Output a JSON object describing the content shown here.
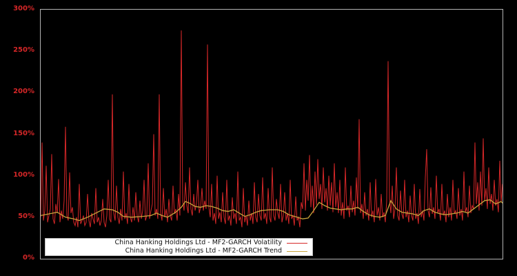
{
  "chart_data": {
    "type": "line",
    "title": "",
    "xlabel": "",
    "ylabel": "",
    "grid": false,
    "background_color": "#000000",
    "plot_border_color": "#b5b5b5",
    "axis_label_color": "#d62728",
    "x_axis": {
      "tick_labels_visible": false
    },
    "ylim": [
      0,
      300
    ],
    "y_unit": "%",
    "y_ticks": [
      {
        "value": 0,
        "label": "0%"
      },
      {
        "value": 50,
        "label": "50%"
      },
      {
        "value": 100,
        "label": "100%"
      },
      {
        "value": 150,
        "label": "150%"
      },
      {
        "value": 200,
        "label": "200%"
      },
      {
        "value": 250,
        "label": "250%"
      },
      {
        "value": 300,
        "label": "300%"
      }
    ],
    "legend": {
      "position": "bottom-left-inside",
      "background": "#ffffff",
      "entries": [
        {
          "label": "China Hanking Holdings Ltd - MF2-GARCH Volatility",
          "color": "#d62728"
        },
        {
          "label": "China Hanking Holdings Ltd - MF2-GARCH Trend",
          "color": "#c9a43c"
        }
      ]
    },
    "series": [
      {
        "name": "China Hanking Holdings Ltd - MF2-GARCH Volatility",
        "type": "line",
        "color": "#d62728",
        "unit": "%",
        "values": [
          50,
          140,
          46,
          58,
          112,
          44,
          52,
          60,
          126,
          48,
          42,
          66,
          55,
          96,
          44,
          58,
          48,
          70,
          159,
          52,
          46,
          104,
          55,
          62,
          44,
          40,
          50,
          38,
          90,
          42,
          46,
          52,
          40,
          44,
          78,
          46,
          38,
          55,
          48,
          42,
          85,
          44,
          50,
          40,
          46,
          72,
          44,
          38,
          52,
          95,
          48,
          44,
          198,
          55,
          46,
          88,
          50,
          42,
          60,
          46,
          105,
          48,
          55,
          42,
          90,
          50,
          44,
          62,
          46,
          80,
          52,
          44,
          70,
          48,
          58,
          95,
          46,
          52,
          115,
          48,
          58,
          66,
          150,
          52,
          60,
          48,
          198,
          55,
          46,
          85,
          50,
          60,
          44,
          72,
          52,
          46,
          88,
          54,
          60,
          46,
          78,
          52,
          275,
          70,
          58,
          92,
          64,
          55,
          110,
          60,
          52,
          78,
          58,
          66,
          95,
          55,
          62,
          85,
          58,
          70,
          60,
          258,
          62,
          50,
          90,
          46,
          55,
          42,
          100,
          48,
          56,
          44,
          80,
          50,
          42,
          95,
          46,
          52,
          40,
          74,
          48,
          55,
          42,
          105,
          46,
          50,
          38,
          85,
          44,
          52,
          40,
          70,
          46,
          55,
          42,
          92,
          50,
          44,
          78,
          52,
          46,
          98,
          48,
          55,
          42,
          85,
          50,
          44,
          110,
          52,
          46,
          72,
          55,
          48,
          90,
          44,
          52,
          80,
          46,
          55,
          42,
          95,
          48,
          52,
          40,
          75,
          46,
          50,
          38,
          68,
          60,
          115,
          58,
          95,
          70,
          125,
          62,
          88,
          55,
          105,
          65,
          120,
          72,
          90,
          60,
          110,
          68,
          85,
          58,
          100,
          64,
          92,
          56,
          115,
          62,
          80,
          55,
          95,
          52,
          68,
          48,
          110,
          58,
          64,
          50,
          88,
          56,
          70,
          52,
          98,
          60,
          168,
          55,
          66,
          48,
          80,
          52,
          60,
          46,
          92,
          50,
          58,
          44,
          96,
          52,
          62,
          46,
          78,
          50,
          56,
          44,
          70,
          238,
          72,
          55,
          88,
          48,
          60,
          110,
          52,
          46,
          82,
          54,
          48,
          95,
          50,
          58,
          44,
          76,
          52,
          46,
          90,
          48,
          55,
          42,
          84,
          50,
          58,
          46,
          98,
          132,
          58,
          50,
          86,
          54,
          62,
          48,
          100,
          55,
          60,
          46,
          90,
          52,
          58,
          44,
          78,
          50,
          62,
          46,
          95,
          54,
          58,
          48,
          85,
          52,
          60,
          46,
          105,
          56,
          62,
          50,
          88,
          55,
          64,
          60,
          140,
          66,
          92,
          58,
          105,
          64,
          145,
          70,
          85,
          60,
          110,
          66,
          78,
          58,
          95,
          64,
          72,
          56,
          118,
          68,
          90
        ]
      },
      {
        "name": "China Hanking Holdings Ltd - MF2-GARCH Trend",
        "type": "line",
        "color": "#c9a43c",
        "unit": "%",
        "points": [
          [
            0,
            52
          ],
          [
            6,
            54
          ],
          [
            12,
            56
          ],
          [
            18,
            50
          ],
          [
            24,
            48
          ],
          [
            28,
            46
          ],
          [
            34,
            50
          ],
          [
            40,
            55
          ],
          [
            46,
            60
          ],
          [
            52,
            59
          ],
          [
            56,
            56
          ],
          [
            60,
            51
          ],
          [
            66,
            50
          ],
          [
            74,
            51
          ],
          [
            80,
            52
          ],
          [
            84,
            55
          ],
          [
            88,
            52
          ],
          [
            92,
            50
          ],
          [
            98,
            56
          ],
          [
            102,
            62
          ],
          [
            105,
            69
          ],
          [
            108,
            67
          ],
          [
            112,
            63
          ],
          [
            116,
            62
          ],
          [
            120,
            64
          ],
          [
            124,
            63
          ],
          [
            128,
            61
          ],
          [
            132,
            58
          ],
          [
            136,
            57
          ],
          [
            140,
            59
          ],
          [
            144,
            55
          ],
          [
            148,
            51
          ],
          [
            152,
            53
          ],
          [
            156,
            56
          ],
          [
            160,
            58
          ],
          [
            166,
            59
          ],
          [
            172,
            59
          ],
          [
            176,
            57
          ],
          [
            180,
            53
          ],
          [
            186,
            50
          ],
          [
            190,
            48
          ],
          [
            194,
            49
          ],
          [
            198,
            58
          ],
          [
            202,
            68
          ],
          [
            206,
            64
          ],
          [
            210,
            61
          ],
          [
            214,
            60
          ],
          [
            218,
            59
          ],
          [
            222,
            60
          ],
          [
            226,
            60
          ],
          [
            230,
            62
          ],
          [
            234,
            57
          ],
          [
            238,
            53
          ],
          [
            242,
            51
          ],
          [
            246,
            50
          ],
          [
            250,
            52
          ],
          [
            254,
            70
          ],
          [
            258,
            60
          ],
          [
            262,
            56
          ],
          [
            266,
            55
          ],
          [
            270,
            54
          ],
          [
            274,
            52
          ],
          [
            278,
            58
          ],
          [
            282,
            60
          ],
          [
            286,
            56
          ],
          [
            290,
            54
          ],
          [
            294,
            53
          ],
          [
            298,
            54
          ],
          [
            302,
            55
          ],
          [
            306,
            57
          ],
          [
            310,
            55
          ],
          [
            314,
            60
          ],
          [
            318,
            65
          ],
          [
            322,
            70
          ],
          [
            326,
            71
          ],
          [
            330,
            66
          ],
          [
            334,
            69
          ],
          [
            335,
            67
          ]
        ]
      }
    ]
  }
}
